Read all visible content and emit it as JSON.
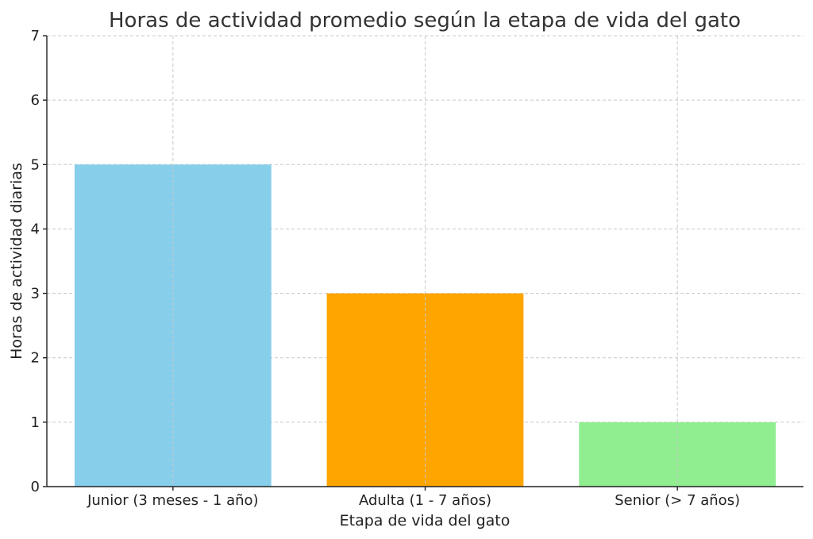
{
  "chart_data": {
    "type": "bar",
    "title": "Horas de actividad promedio según la etapa de vida del gato",
    "xlabel": "Etapa de vida del gato",
    "ylabel": "Horas de actividad diarias",
    "categories": [
      "Junior (3 meses - 1 año)",
      "Adulta (1 - 7 años)",
      "Senior (> 7 años)"
    ],
    "values": [
      5,
      3,
      1
    ],
    "colors": [
      "#87ceeb",
      "#ffa500",
      "#90ee90"
    ],
    "ylim": [
      0,
      7
    ],
    "yticks": [
      0,
      1,
      2,
      3,
      4,
      5,
      6,
      7
    ],
    "grid": true
  }
}
